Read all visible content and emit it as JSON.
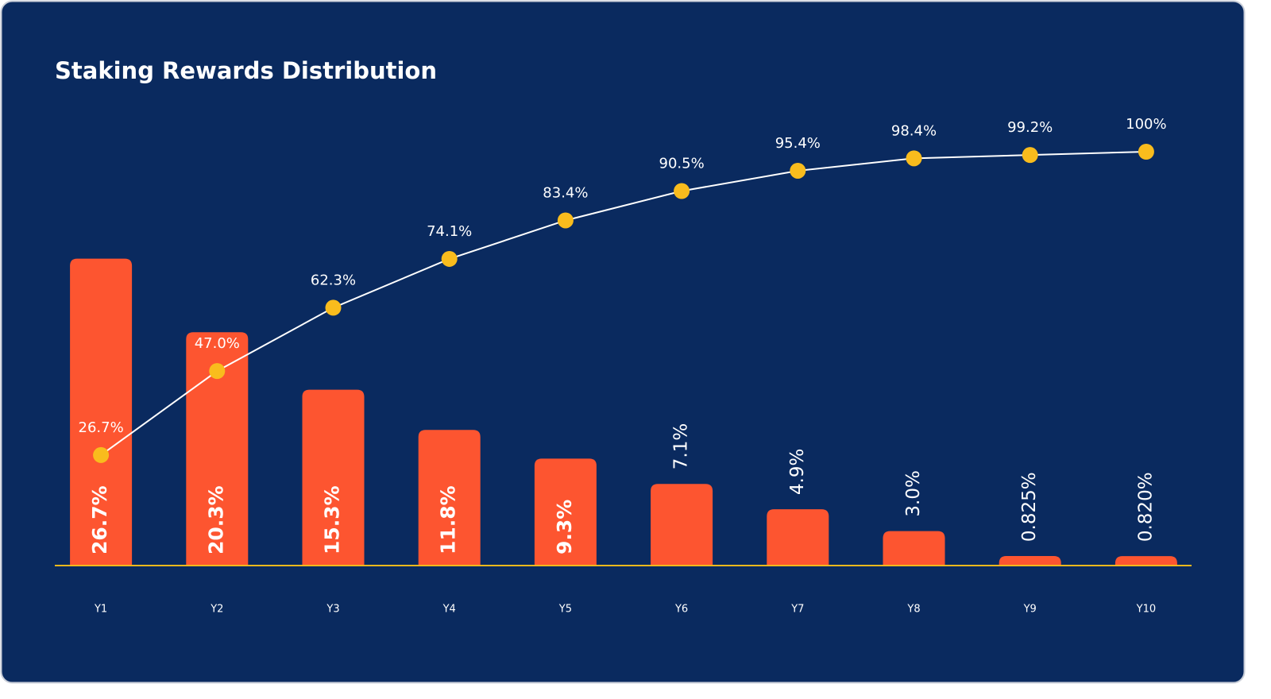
{
  "chart_data": {
    "type": "combo",
    "title": "Staking Rewards Distribution",
    "categories": [
      "Y1",
      "Y2",
      "Y3",
      "Y4",
      "Y5",
      "Y6",
      "Y7",
      "Y8",
      "Y9",
      "Y10"
    ],
    "ylim": [
      0,
      36
    ],
    "y2lim": [
      0,
      100
    ],
    "background": "#0a2a5f",
    "baseline_color": "#f5b81c",
    "series": [
      {
        "type": "bar",
        "color": "#fd5530",
        "values": [
          26.7,
          20.3,
          15.3,
          11.8,
          9.3,
          7.1,
          4.9,
          3.0,
          0.825,
          0.82
        ],
        "value_labels": [
          "26.7%",
          "20.3%",
          "15.3%",
          "11.8%",
          "9.3%",
          "7.1%",
          "4.9%",
          "3.0%",
          "0.825%",
          "0.820%"
        ]
      },
      {
        "type": "line",
        "axis": "y2",
        "color": "#ffffff",
        "marker_color": "#f9bc1d",
        "values": [
          26.7,
          47.0,
          62.3,
          74.1,
          83.4,
          90.5,
          95.4,
          98.4,
          99.2,
          100
        ],
        "value_labels": [
          "26.7%",
          "47.0%",
          "62.3%",
          "74.1%",
          "83.4%",
          "90.5%",
          "95.4%",
          "98.4%",
          "99.2%",
          "100%"
        ]
      }
    ]
  }
}
